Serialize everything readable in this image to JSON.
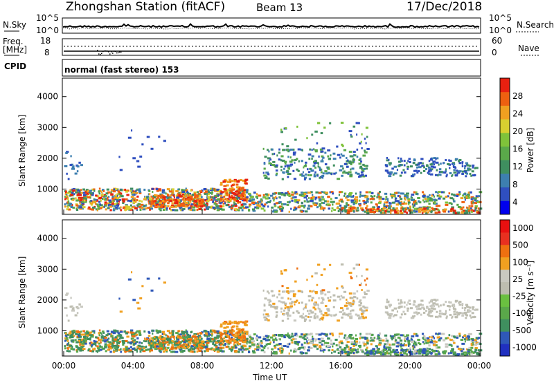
{
  "header": {
    "title": "Zhongshan Station (fitACF)",
    "beam": "Beam 13",
    "date": "17/Dec/2018"
  },
  "top_panels": {
    "nsky_label": "N.Sky",
    "nsky_ticks": [
      "10^5",
      "10^0"
    ],
    "nsearch_label": "N.Search",
    "nsearch_ticks": [
      "10^5",
      "10^0"
    ],
    "freq_label": "Freq.",
    "freq_unit": "[MHz]",
    "freq_ticks": [
      "18",
      "8"
    ],
    "nave_label": "Nave",
    "nave_ticks": [
      "60",
      "0"
    ],
    "cpid_label": "CPID",
    "cpid_text": "normal (fast stereo) 153"
  },
  "chart_data": [
    {
      "type": "heatmap",
      "name": "power-panel",
      "ylabel": "Slant Range [km]",
      "yticks": [
        1000,
        2000,
        3000,
        4000
      ],
      "ylim": [
        180,
        4600
      ],
      "xlim": [
        0,
        24
      ],
      "xticks": [
        "00:00",
        "04:00",
        "08:00",
        "12:00",
        "16:00",
        "20:00",
        "00:00"
      ],
      "colorbar": {
        "label": "Power [dB]",
        "ticks": [
          "4",
          "8",
          "12",
          "16",
          "20",
          "24",
          "28"
        ],
        "colors": [
          "#0000ee",
          "#2f4fbf",
          "#3d7fb0",
          "#3f8f5f",
          "#5aa84a",
          "#7fc23a",
          "#d8d030",
          "#f0a020",
          "#ee6010",
          "#e82010"
        ]
      }
    },
    {
      "type": "heatmap",
      "name": "velocity-panel",
      "ylabel": "Slant Range [km]",
      "yticks": [
        1000,
        2000,
        3000,
        4000
      ],
      "ylim": [
        180,
        4600
      ],
      "xlim": [
        0,
        24
      ],
      "xticks": [
        "00:00",
        "04:00",
        "08:00",
        "12:00",
        "16:00",
        "20:00",
        "00:00"
      ],
      "xlabel": "Time UT",
      "colorbar": {
        "label": "Velocity [m s⁻¹]",
        "ticks": [
          "1000",
          "500",
          "100",
          "25",
          "-25",
          "-100",
          "-500",
          "-1000"
        ],
        "colors": [
          "#2030c0",
          "#2f58b8",
          "#3f8f5f",
          "#5aa84a",
          "#6ac040",
          "#bdbdb0",
          "#c8c8c0",
          "#f0a020",
          "#ee7010",
          "#e83020",
          "#e81010"
        ]
      }
    }
  ]
}
